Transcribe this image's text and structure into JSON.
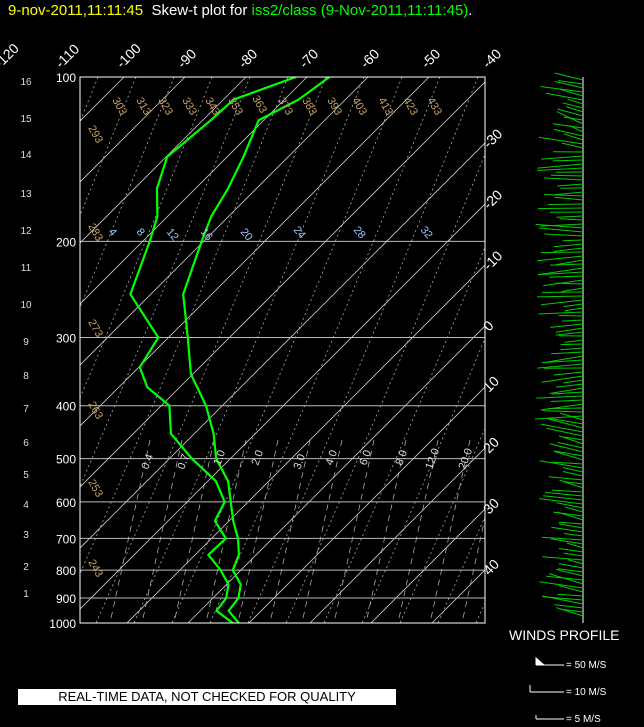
{
  "title": {
    "date_time": "9-nov-2011,11:11:45",
    "prefix": "Skew-t plot for ",
    "source": "iss2/class",
    "suffix_time": "(9-Nov-2011,11:11:45)",
    "suffix_end": "."
  },
  "qc_notice": "REAL-TIME DATA, NOT CHECKED FOR QUALITY",
  "winds": {
    "title": "WINDS PROFILE",
    "legend": [
      "= 50 M/S",
      "= 10 M/S",
      "= 5 M/S"
    ]
  },
  "chart_data": {
    "type": "line",
    "x_axis": "temperature",
    "y_axis": "pressure (log scale)",
    "pressure_levels": [
      100,
      200,
      300,
      400,
      500,
      600,
      700,
      800,
      900,
      1000
    ],
    "pressure_labels": [
      "100",
      "200",
      "300",
      "400",
      "500",
      "600",
      "700",
      "800",
      "900",
      "1000"
    ],
    "altitude_labels_km": [
      "1",
      "2",
      "3",
      "4",
      "5",
      "6",
      "7",
      "8",
      "9",
      "10",
      "11",
      "12",
      "13",
      "14",
      "15",
      "16"
    ],
    "altitude_values_km": [
      1,
      2,
      3,
      4,
      5,
      6,
      7,
      8,
      9,
      10,
      11,
      12,
      13,
      14,
      15,
      16
    ],
    "temp_labels_top": [
      "-120",
      "-110",
      "-100",
      "-90",
      "-80",
      "-70",
      "-60",
      "-50",
      "-40"
    ],
    "temp_labels_right": [
      "-30",
      "-20",
      "-10",
      "0",
      "10",
      "20",
      "30",
      "40"
    ],
    "theta_labels": [
      "293",
      "303",
      "313",
      "323",
      "333",
      "343",
      "353",
      "363",
      "373",
      "383",
      "393",
      "403",
      "413",
      "423",
      "433",
      "283",
      "273",
      "263",
      "253",
      "243"
    ],
    "theta_e_labels": [
      "4",
      "8",
      "12",
      "16",
      "20",
      "24",
      "28",
      "32"
    ],
    "mixing_ratio_labels": [
      "0.4",
      "0.7",
      "1.0",
      "2.0",
      "3.0",
      "4.0",
      "6.0",
      "8.0",
      "12.0",
      "20.0"
    ],
    "temperature_profile": {
      "pressure": [
        1000,
        950,
        900,
        850,
        800,
        750,
        700,
        650,
        600,
        550,
        500,
        450,
        400,
        350,
        300,
        250,
        200,
        180,
        160,
        140,
        120,
        110,
        100
      ],
      "temperature": [
        8,
        5,
        4,
        2,
        -1,
        -3,
        -6,
        -9,
        -13,
        -17,
        -22,
        -27,
        -33,
        -40,
        -47,
        -55,
        -60,
        -63,
        -65,
        -67,
        -71,
        -68,
        -66
      ]
    },
    "dewpoint_profile": {
      "pressure": [
        1000,
        950,
        900,
        850,
        800,
        750,
        700,
        650,
        600,
        550,
        500,
        450,
        400,
        370,
        340,
        300,
        250,
        200,
        180,
        160,
        140,
        120,
        110,
        100
      ],
      "dewpoint": [
        7,
        3,
        2,
        0,
        -3,
        -8,
        -8,
        -12,
        -14,
        -19,
        -26,
        -34,
        -39,
        -45,
        -50,
        -52,
        -63,
        -69,
        -72,
        -76,
        -80,
        -79,
        -78,
        -72
      ]
    },
    "grid": true
  }
}
